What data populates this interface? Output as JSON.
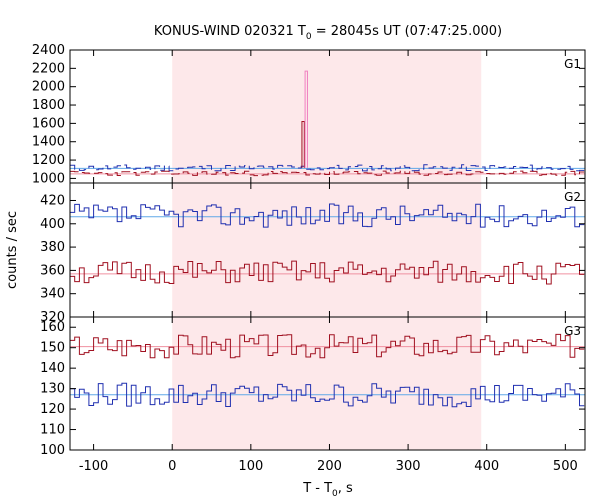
{
  "chart_data": {
    "type": "line",
    "title": {
      "main": "KONUS-WIND 020321 T",
      "sub": "0",
      "tail": " = 28045s UT (07:47:25.000)"
    },
    "xlabel": {
      "main": "T - T",
      "sub": "0",
      "tail": ", s"
    },
    "ylabel": "counts / sec",
    "xlim": [
      -130,
      525
    ],
    "x_ticks": [
      -100,
      0,
      100,
      200,
      300,
      400,
      500
    ],
    "shaded_interval": {
      "x": [
        0,
        393
      ],
      "color": "#fde8ea"
    },
    "colors": {
      "red_series": "#a01020",
      "blue_series": "#2030b0",
      "red_background": "#f090a0",
      "blue_background": "#60a8e8",
      "spike": "#f080c0"
    },
    "panels": [
      {
        "label": "G1",
        "ylim": [
          950,
          2400
        ],
        "y_ticks": [
          1000,
          1200,
          1400,
          1600,
          1800,
          2000,
          2200,
          2400
        ],
        "series": [
          {
            "color_key": "blue_series",
            "values_mean": 1115,
            "values_amp": 35,
            "seed": 11,
            "dashed": true
          },
          {
            "color_key": "red_series",
            "values_mean": 1055,
            "values_amp": 25,
            "seed": 23,
            "dashed": true
          }
        ],
        "backgrounds": [
          {
            "color_key": "blue_background",
            "value": 1110
          },
          {
            "color_key": "red_background",
            "value": 1050
          }
        ],
        "spikes": [
          {
            "x": 165,
            "value": 1620,
            "color_key": "red_series"
          },
          {
            "x": 169,
            "value": 2170,
            "color_key": "spike"
          }
        ]
      },
      {
        "label": "G2",
        "ylim": [
          320,
          435
        ],
        "y_ticks": [
          320,
          340,
          360,
          380,
          400,
          420
        ],
        "series": [
          {
            "color_key": "blue_series",
            "values_mean": 407,
            "values_amp": 10,
            "seed": 37,
            "dashed": false
          },
          {
            "color_key": "red_series",
            "values_mean": 358,
            "values_amp": 10,
            "seed": 51,
            "dashed": false
          }
        ],
        "backgrounds": [
          {
            "color_key": "blue_background",
            "value": 406
          },
          {
            "color_key": "red_background",
            "value": 357
          }
        ],
        "spikes": []
      },
      {
        "label": "G3",
        "ylim": [
          100,
          165
        ],
        "y_ticks": [
          100,
          110,
          120,
          130,
          140,
          150,
          160
        ],
        "series": [
          {
            "color_key": "red_series",
            "values_mean": 151,
            "values_amp": 6,
            "seed": 67,
            "dashed": false
          },
          {
            "color_key": "blue_series",
            "values_mean": 127,
            "values_amp": 6,
            "seed": 79,
            "dashed": false
          }
        ],
        "backgrounds": [
          {
            "color_key": "red_background",
            "value": 150.5
          },
          {
            "color_key": "blue_background",
            "value": 127
          }
        ],
        "spikes": []
      }
    ]
  }
}
